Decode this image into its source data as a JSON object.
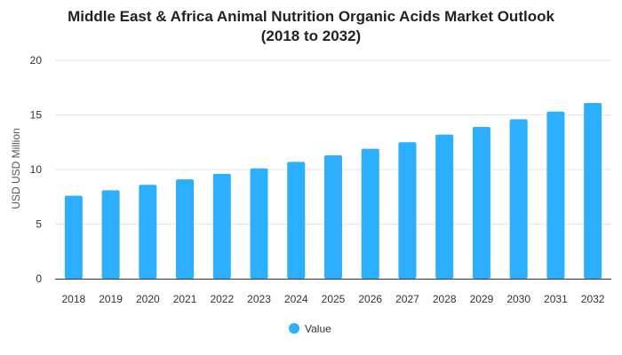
{
  "chart_data": {
    "type": "bar",
    "title_line1": "Middle East & Africa Animal Nutrition Organic Acids Market Outlook",
    "title_line2": "(2018 to 2032)",
    "xlabel": "",
    "ylabel": "USD USD Million",
    "ylim": [
      0,
      20
    ],
    "yticks": [
      0,
      5,
      10,
      15,
      20
    ],
    "grid": true,
    "legend_position": "bottom",
    "categories": [
      "2018",
      "2019",
      "2020",
      "2021",
      "2022",
      "2023",
      "2024",
      "2025",
      "2026",
      "2027",
      "2028",
      "2029",
      "2030",
      "2031",
      "2032"
    ],
    "series": [
      {
        "name": "Value",
        "color": "#2CAFFE",
        "values": [
          7.6,
          8.1,
          8.6,
          9.1,
          9.6,
          10.1,
          10.7,
          11.3,
          11.9,
          12.5,
          13.2,
          13.9,
          14.6,
          15.3,
          16.1
        ]
      }
    ]
  }
}
